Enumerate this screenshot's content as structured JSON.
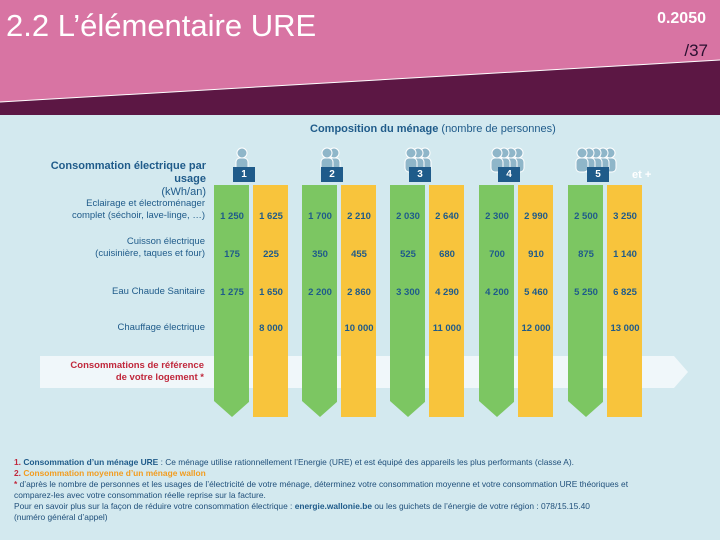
{
  "slide": {
    "title": "2.2 L’élémentaire URE",
    "code": "0.2050",
    "page": "/37"
  },
  "colors": {
    "header_pink": "#d874a3",
    "header_dark": "#5c1744",
    "panel_bg": "#d3e9ef",
    "green": "#7cc662",
    "yellow": "#f8c43c",
    "blue_text": "#1f5b8a",
    "red_text": "#c0283c"
  },
  "infographic": {
    "composition_title": "Composition du ménage",
    "composition_sub": "(nombre de personnes)",
    "conso_title": "Consommation électrique par usage",
    "conso_unit": "(kWh/an)",
    "rows": [
      {
        "label_line1": "Eclairage et électroménager",
        "label_line2": "complet (séchoir, lave-linge, …)"
      },
      {
        "label_line1": "Cuisson électrique",
        "label_line2": "(cuisinière, taques et four)"
      },
      {
        "label_line1": "Eau Chaude Sanitaire",
        "label_line2": ""
      },
      {
        "label_line1": "Chauffage électrique",
        "label_line2": ""
      }
    ],
    "households": [
      {
        "n": "1",
        "icon": "person-1-icon",
        "values": [
          [
            "1 250",
            "1 625"
          ],
          [
            "175",
            "225"
          ],
          [
            "1 275",
            "1 650"
          ],
          [
            "",
            "8 000"
          ]
        ]
      },
      {
        "n": "2",
        "icon": "person-2-icon",
        "values": [
          [
            "1 700",
            "2 210"
          ],
          [
            "350",
            "455"
          ],
          [
            "2 200",
            "2 860"
          ],
          [
            "",
            "10 000"
          ]
        ]
      },
      {
        "n": "3",
        "icon": "person-3-icon",
        "values": [
          [
            "2 030",
            "2 640"
          ],
          [
            "525",
            "680"
          ],
          [
            "3 300",
            "4 290"
          ],
          [
            "",
            "11 000"
          ]
        ]
      },
      {
        "n": "4",
        "icon": "person-4-icon",
        "values": [
          [
            "2 300",
            "2 990"
          ],
          [
            "700",
            "910"
          ],
          [
            "4 200",
            "5 460"
          ],
          [
            "",
            "12 000"
          ]
        ]
      },
      {
        "n": "5",
        "icon": "person-5-icon",
        "values": [
          [
            "2 500",
            "3 250"
          ],
          [
            "875",
            "1 140"
          ],
          [
            "5 250",
            "6 825"
          ],
          [
            "",
            "13 000"
          ]
        ]
      }
    ],
    "et_plus": "et +",
    "reference_line1": "Consommations de référence",
    "reference_line2": "de votre logement *"
  },
  "notes": {
    "n1_num": "1.",
    "n1_bold": "Consommation d’un ménage URE",
    "n1_text": ": Ce ménage utilise rationnellement l’Energie (URE) et est équipé des appareils les plus performants (classe A).",
    "n2_num": "2.",
    "n2_bold": "Consommation moyenne d’un ménage wallon",
    "n3_star": "*",
    "n3_line1": "d’après le nombre de personnes et les usages de l’électricité de votre ménage, déterminez votre consommation moyenne et votre consommation URE théoriques et",
    "n3_line2": "comparez-les avec votre consommation réelle reprise sur la facture.",
    "n4_text": "Pour en savoir plus sur la façon de réduire votre consommation électrique :",
    "n4_link": "energie.wallonie.be",
    "n4_rest": "ou les guichets de l’énergie de votre région : 078/15.15.40",
    "n5_text": "(numéro général d’appel)"
  }
}
